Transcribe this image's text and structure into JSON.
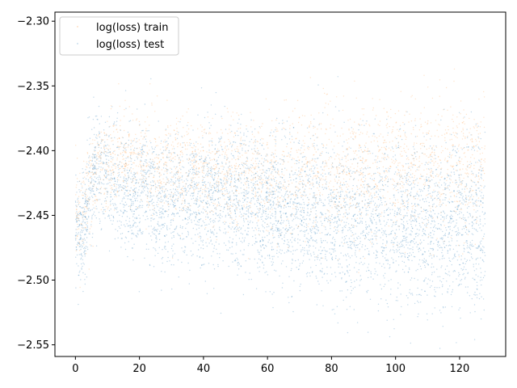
{
  "chart_data": {
    "type": "scatter",
    "title": "",
    "xlabel": "",
    "ylabel": "",
    "xlim": [
      -6.4,
      134.4
    ],
    "ylim": [
      -2.559,
      -2.293
    ],
    "x_ticks": [
      0,
      20,
      40,
      60,
      80,
      100,
      120
    ],
    "x_tick_labels": [
      "0",
      "20",
      "40",
      "60",
      "80",
      "100",
      "120"
    ],
    "y_ticks": [
      -2.3,
      -2.35,
      -2.4,
      -2.45,
      -2.5,
      -2.55
    ],
    "y_tick_labels": [
      "−2.30",
      "−2.35",
      "−2.40",
      "−2.45",
      "−2.50",
      "−2.55"
    ],
    "grid": false,
    "legend_position": "upper-left",
    "x_range_of_points": [
      0,
      128
    ],
    "series": [
      {
        "name": "log(loss) train",
        "color": "#ff7f0e",
        "mean_trend": [
          {
            "x": 0,
            "y": -2.445
          },
          {
            "x": 3,
            "y": -2.44
          },
          {
            "x": 6,
            "y": -2.418
          },
          {
            "x": 10,
            "y": -2.41
          },
          {
            "x": 15,
            "y": -2.405
          },
          {
            "x": 20,
            "y": -2.408
          },
          {
            "x": 30,
            "y": -2.415
          },
          {
            "x": 40,
            "y": -2.418
          },
          {
            "x": 60,
            "y": -2.418
          },
          {
            "x": 80,
            "y": -2.415
          },
          {
            "x": 100,
            "y": -2.413
          },
          {
            "x": 128,
            "y": -2.412
          }
        ],
        "spread": 0.018
      },
      {
        "name": "log(loss) test",
        "color": "#1f77b4",
        "mean_trend": [
          {
            "x": 0,
            "y": -2.455
          },
          {
            "x": 2,
            "y": -2.47
          },
          {
            "x": 4,
            "y": -2.44
          },
          {
            "x": 6,
            "y": -2.415
          },
          {
            "x": 10,
            "y": -2.42
          },
          {
            "x": 15,
            "y": -2.43
          },
          {
            "x": 20,
            "y": -2.435
          },
          {
            "x": 22,
            "y": -2.42
          },
          {
            "x": 25,
            "y": -2.44
          },
          {
            "x": 40,
            "y": -2.435
          },
          {
            "x": 60,
            "y": -2.445
          },
          {
            "x": 80,
            "y": -2.452
          },
          {
            "x": 100,
            "y": -2.455
          },
          {
            "x": 128,
            "y": -2.455
          }
        ],
        "spread": 0.022
      }
    ]
  }
}
